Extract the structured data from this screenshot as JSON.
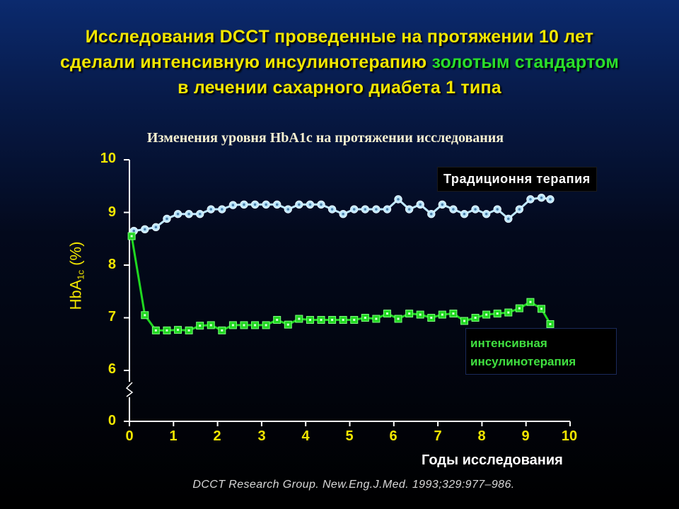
{
  "slide": {
    "title_line1": "Исследования DCCT проведенные на протяжении 10 лет",
    "title_line2_pre": "сделали интенсивную инсулинотерапию ",
    "title_line2_highlight": "золотым стандартом",
    "title_line3": "в лечении сахарного диабета 1 типа",
    "citation": "DCCT Research Group. New.Eng.J.Med. 1993;329:977–986.",
    "colors": {
      "title": "#f2e600",
      "highlight": "#2adf2a",
      "axis": "#ffffff"
    }
  },
  "chart_data": {
    "type": "line",
    "title": "Изменения уровня HbA1c на протяжении исследования",
    "xlabel": "Годы исследования",
    "ylabel_main": "HbA",
    "ylabel_sub": "1c",
    "ylabel_unit": " (%)",
    "xlim": [
      0,
      10
    ],
    "ylim": [
      6,
      10
    ],
    "y_axis_broken": true,
    "x_ticks": [
      "0",
      "1",
      "2",
      "3",
      "4",
      "5",
      "6",
      "7",
      "8",
      "9",
      "10"
    ],
    "y_ticks": [
      "10",
      "9",
      "8",
      "7",
      "6",
      "0"
    ],
    "grid": false,
    "series": [
      {
        "name": "Традиционня терапия",
        "color": "#bfe8ff",
        "marker": "circle",
        "x": [
          0.1,
          0.35,
          0.6,
          0.85,
          1.1,
          1.35,
          1.6,
          1.85,
          2.1,
          2.35,
          2.6,
          2.85,
          3.1,
          3.35,
          3.6,
          3.85,
          4.1,
          4.35,
          4.6,
          4.85,
          5.1,
          5.35,
          5.6,
          5.85,
          6.1,
          6.35,
          6.6,
          6.85,
          7.1,
          7.35,
          7.6,
          7.85,
          8.1,
          8.35,
          8.6,
          8.85,
          9.1,
          9.35,
          9.55
        ],
        "y": [
          8.65,
          8.68,
          8.72,
          8.88,
          8.97,
          8.97,
          8.97,
          9.06,
          9.06,
          9.14,
          9.15,
          9.15,
          9.15,
          9.15,
          9.06,
          9.15,
          9.15,
          9.15,
          9.06,
          8.97,
          9.06,
          9.06,
          9.06,
          9.06,
          9.25,
          9.06,
          9.15,
          8.97,
          9.15,
          9.06,
          8.97,
          9.06,
          8.97,
          9.06,
          8.88,
          9.06,
          9.25,
          9.28,
          9.25
        ]
      },
      {
        "name": "интенсивная инсулинотерапия",
        "color": "#20d820",
        "marker": "square",
        "x": [
          0.05,
          0.35,
          0.6,
          0.85,
          1.1,
          1.35,
          1.6,
          1.85,
          2.1,
          2.35,
          2.6,
          2.85,
          3.1,
          3.35,
          3.6,
          3.85,
          4.1,
          4.35,
          4.6,
          4.85,
          5.1,
          5.35,
          5.6,
          5.85,
          6.1,
          6.35,
          6.6,
          6.85,
          7.1,
          7.35,
          7.6,
          7.85,
          8.1,
          8.35,
          8.6,
          8.85,
          9.1,
          9.35,
          9.55
        ],
        "y": [
          8.55,
          7.05,
          6.76,
          6.76,
          6.77,
          6.76,
          6.85,
          6.86,
          6.76,
          6.86,
          6.86,
          6.86,
          6.86,
          6.96,
          6.87,
          6.98,
          6.96,
          6.96,
          6.96,
          6.96,
          6.96,
          7.0,
          6.98,
          7.08,
          6.98,
          7.08,
          7.06,
          7.0,
          7.06,
          7.08,
          6.94,
          7.0,
          7.06,
          7.08,
          7.1,
          7.18,
          7.3,
          7.17,
          6.88
        ]
      }
    ]
  }
}
